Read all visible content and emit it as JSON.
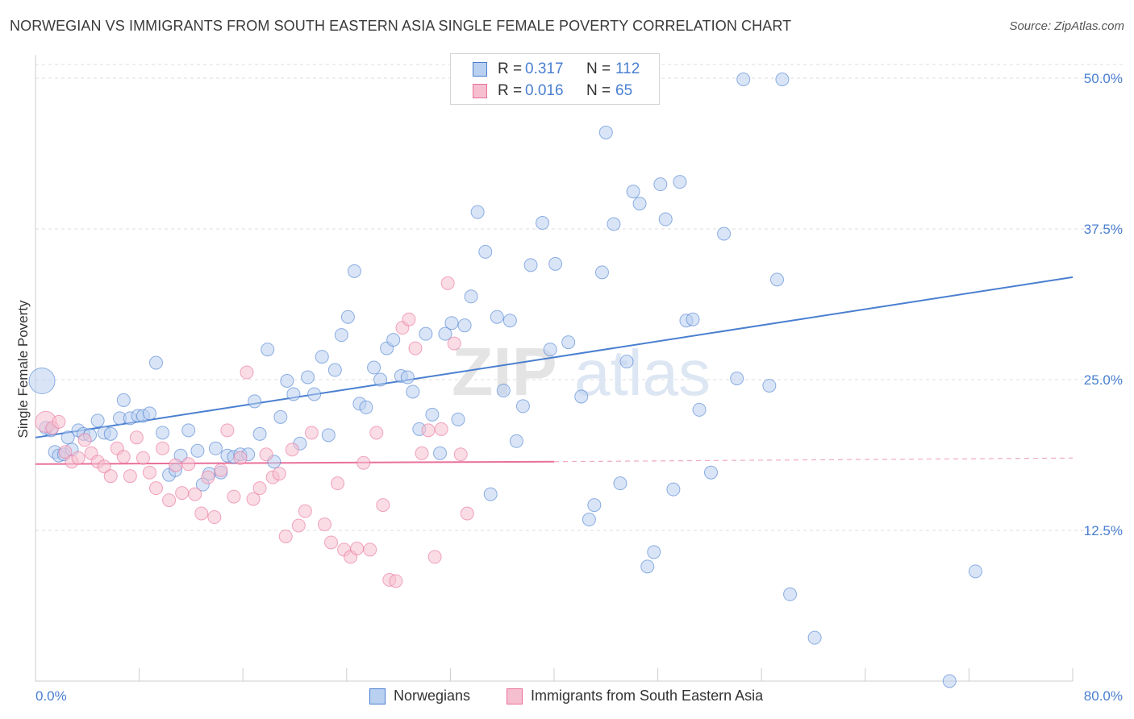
{
  "title": "NORWEGIAN VS IMMIGRANTS FROM SOUTH EASTERN ASIA SINGLE FEMALE POVERTY CORRELATION CHART",
  "source": "Source: ZipAtlas.com",
  "watermark": "ZIPatlas",
  "colors": {
    "blue": "#4a7fd0",
    "blue_fill": "#b9d0f0",
    "pink": "#e8709a",
    "pink_fill": "#f6bfd0",
    "grid": "#dddddd"
  },
  "legend": {
    "rows": [
      {
        "r_label": "R =",
        "r_value": "0.317",
        "n_label": "N =",
        "n_value": "112"
      },
      {
        "r_label": "R =",
        "r_value": "0.016",
        "n_label": "N =",
        "n_value": "65"
      }
    ]
  },
  "bottom_legend": {
    "norwegians": "Norwegians",
    "immigrants": "Immigrants from South Eastern Asia"
  },
  "chart_data": {
    "type": "scatter",
    "title": "NORWEGIAN VS IMMIGRANTS FROM SOUTH EASTERN ASIA SINGLE FEMALE POVERTY CORRELATION CHART",
    "xlabel": "",
    "ylabel": "Single Female Poverty",
    "xlim": [
      0,
      80
    ],
    "ylim": [
      0,
      50
    ],
    "x_tick_labels": [
      "0.0%",
      "80.0%"
    ],
    "y_ticks": [
      12.5,
      25.0,
      37.5,
      50.0
    ],
    "y_tick_labels": [
      "12.5%",
      "25.0%",
      "37.5%",
      "50.0%"
    ],
    "grid": true,
    "legend_position": "top-center",
    "series": [
      {
        "name": "Norwegians",
        "color": "#4a7fd0",
        "r": 0.317,
        "n": 112,
        "trend": {
          "x0": 0,
          "y0": 20.2,
          "x1": 80,
          "y1": 33.5
        },
        "points": [
          [
            0.5,
            24.9
          ],
          [
            1.2,
            20.8
          ],
          [
            1.5,
            19.0
          ],
          [
            1.8,
            18.7
          ],
          [
            2.2,
            18.8
          ],
          [
            2.8,
            19.2
          ],
          [
            3.3,
            20.8
          ],
          [
            3.7,
            20.5
          ],
          [
            4.2,
            20.4
          ],
          [
            4.8,
            21.6
          ],
          [
            5.3,
            20.6
          ],
          [
            5.8,
            20.5
          ],
          [
            6.5,
            21.8
          ],
          [
            6.8,
            23.3
          ],
          [
            7.3,
            21.8
          ],
          [
            7.9,
            22.0
          ],
          [
            8.3,
            22.0
          ],
          [
            8.8,
            22.2
          ],
          [
            9.3,
            26.4
          ],
          [
            9.8,
            20.6
          ],
          [
            10.3,
            17.1
          ],
          [
            10.8,
            17.5
          ],
          [
            11.2,
            18.7
          ],
          [
            11.8,
            20.8
          ],
          [
            12.5,
            19.1
          ],
          [
            12.9,
            16.3
          ],
          [
            13.4,
            17.2
          ],
          [
            13.9,
            19.3
          ],
          [
            14.3,
            17.3
          ],
          [
            14.8,
            18.7
          ],
          [
            15.3,
            18.6
          ],
          [
            15.8,
            18.8
          ],
          [
            16.4,
            18.8
          ],
          [
            16.9,
            23.2
          ],
          [
            17.3,
            20.5
          ],
          [
            17.9,
            27.5
          ],
          [
            18.4,
            18.2
          ],
          [
            18.9,
            21.9
          ],
          [
            19.4,
            24.9
          ],
          [
            19.9,
            23.8
          ],
          [
            20.4,
            19.7
          ],
          [
            21.0,
            25.2
          ],
          [
            21.5,
            23.8
          ],
          [
            22.1,
            26.9
          ],
          [
            22.6,
            20.4
          ],
          [
            23.1,
            25.8
          ],
          [
            23.6,
            28.7
          ],
          [
            24.1,
            30.2
          ],
          [
            24.6,
            34.0
          ],
          [
            25.0,
            23.0
          ],
          [
            25.5,
            22.7
          ],
          [
            26.1,
            26.0
          ],
          [
            26.6,
            25.0
          ],
          [
            27.1,
            27.6
          ],
          [
            27.6,
            28.3
          ],
          [
            28.2,
            25.3
          ],
          [
            28.7,
            25.2
          ],
          [
            29.1,
            24.0
          ],
          [
            29.6,
            20.9
          ],
          [
            30.1,
            28.8
          ],
          [
            30.6,
            22.1
          ],
          [
            31.2,
            18.9
          ],
          [
            31.6,
            28.8
          ],
          [
            32.1,
            29.7
          ],
          [
            32.6,
            21.7
          ],
          [
            33.1,
            29.5
          ],
          [
            33.6,
            31.9
          ],
          [
            34.1,
            38.9
          ],
          [
            34.7,
            35.6
          ],
          [
            35.1,
            15.5
          ],
          [
            35.6,
            30.2
          ],
          [
            36.1,
            24.1
          ],
          [
            36.6,
            29.9
          ],
          [
            37.1,
            19.9
          ],
          [
            37.6,
            22.8
          ],
          [
            38.2,
            34.5
          ],
          [
            39.1,
            38.0
          ],
          [
            39.7,
            27.5
          ],
          [
            40.1,
            34.6
          ],
          [
            41.1,
            28.1
          ],
          [
            42.1,
            23.6
          ],
          [
            42.7,
            13.4
          ],
          [
            43.1,
            14.6
          ],
          [
            43.7,
            33.9
          ],
          [
            44.6,
            37.9
          ],
          [
            45.1,
            16.4
          ],
          [
            45.6,
            26.5
          ],
          [
            46.1,
            40.6
          ],
          [
            46.6,
            39.6
          ],
          [
            47.2,
            9.5
          ],
          [
            47.7,
            10.7
          ],
          [
            48.2,
            41.2
          ],
          [
            48.6,
            38.3
          ],
          [
            49.2,
            15.9
          ],
          [
            49.7,
            41.4
          ],
          [
            50.2,
            29.9
          ],
          [
            50.7,
            30.0
          ],
          [
            51.2,
            22.5
          ],
          [
            52.1,
            17.3
          ],
          [
            53.1,
            37.1
          ],
          [
            54.1,
            25.1
          ],
          [
            54.6,
            49.9
          ],
          [
            56.6,
            24.5
          ],
          [
            57.2,
            33.3
          ],
          [
            58.2,
            7.2
          ],
          [
            57.6,
            49.9
          ],
          [
            60.1,
            3.6
          ],
          [
            72.5,
            9.1
          ],
          [
            70.5,
            0.0
          ],
          [
            44.0,
            45.5
          ],
          [
            0.8,
            21.0
          ],
          [
            2.5,
            20.2
          ]
        ]
      },
      {
        "name": "Immigrants from South Eastern Asia",
        "color": "#e8709a",
        "r": 0.016,
        "n": 65,
        "trend": {
          "x0": 0,
          "y0": 18.0,
          "x1": 40,
          "y1": 18.2,
          "dashed_x1": 80,
          "dashed_y1": 18.5
        },
        "points": [
          [
            0.8,
            21.5
          ],
          [
            1.3,
            21.0
          ],
          [
            1.8,
            21.5
          ],
          [
            2.3,
            19.0
          ],
          [
            2.8,
            18.2
          ],
          [
            3.3,
            18.5
          ],
          [
            3.8,
            20.0
          ],
          [
            4.3,
            18.9
          ],
          [
            4.8,
            18.2
          ],
          [
            5.3,
            17.8
          ],
          [
            5.8,
            17.0
          ],
          [
            6.3,
            19.3
          ],
          [
            6.8,
            18.6
          ],
          [
            7.3,
            17.0
          ],
          [
            7.8,
            20.2
          ],
          [
            8.3,
            18.5
          ],
          [
            8.8,
            17.3
          ],
          [
            9.3,
            16.0
          ],
          [
            9.8,
            19.3
          ],
          [
            10.3,
            15.0
          ],
          [
            10.8,
            17.9
          ],
          [
            11.3,
            15.6
          ],
          [
            11.8,
            18.0
          ],
          [
            12.3,
            15.5
          ],
          [
            12.8,
            13.9
          ],
          [
            13.3,
            16.9
          ],
          [
            13.8,
            13.6
          ],
          [
            14.3,
            17.5
          ],
          [
            14.8,
            20.8
          ],
          [
            15.3,
            15.3
          ],
          [
            15.8,
            18.5
          ],
          [
            16.3,
            25.6
          ],
          [
            16.8,
            15.1
          ],
          [
            17.3,
            16.0
          ],
          [
            17.8,
            18.8
          ],
          [
            18.3,
            16.9
          ],
          [
            18.8,
            17.2
          ],
          [
            19.3,
            12.0
          ],
          [
            19.8,
            19.2
          ],
          [
            20.3,
            12.9
          ],
          [
            20.8,
            14.1
          ],
          [
            21.3,
            20.6
          ],
          [
            22.3,
            13.0
          ],
          [
            22.8,
            11.5
          ],
          [
            23.3,
            16.4
          ],
          [
            23.8,
            10.9
          ],
          [
            24.3,
            10.3
          ],
          [
            24.8,
            11.0
          ],
          [
            25.3,
            18.1
          ],
          [
            25.8,
            10.9
          ],
          [
            26.3,
            20.6
          ],
          [
            26.8,
            14.6
          ],
          [
            27.3,
            8.4
          ],
          [
            27.8,
            8.3
          ],
          [
            28.3,
            29.3
          ],
          [
            28.8,
            30.0
          ],
          [
            29.3,
            27.6
          ],
          [
            29.8,
            18.9
          ],
          [
            30.3,
            20.8
          ],
          [
            30.8,
            10.3
          ],
          [
            31.3,
            20.9
          ],
          [
            31.8,
            33.0
          ],
          [
            32.3,
            28.0
          ],
          [
            32.8,
            18.8
          ],
          [
            33.3,
            13.9
          ]
        ]
      }
    ]
  }
}
